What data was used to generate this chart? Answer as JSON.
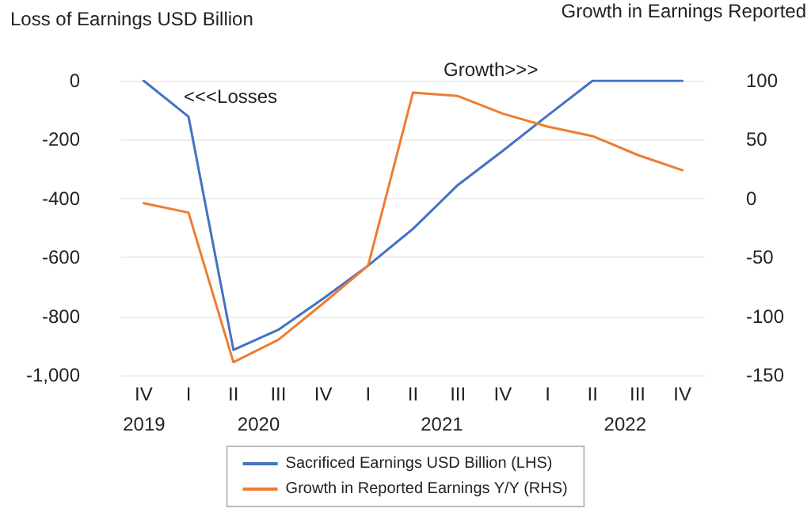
{
  "chart_data": {
    "type": "line",
    "ylabel": "Loss of Earnings USD Billion",
    "y2label": "Growth in Earnings Reported",
    "categories": [
      "IV",
      "I",
      "II",
      "III",
      "IV",
      "I",
      "II",
      "III",
      "IV",
      "I",
      "II",
      "III",
      "IV"
    ],
    "series": [
      {
        "name": "Sacrificed Earnings USD Billion (LHS)",
        "color": "#4472c4",
        "values": [
          0,
          -122,
          -914,
          -846,
          -740,
          -628,
          -503,
          -354,
          -238,
          -118,
          0,
          0,
          0
        ]
      },
      {
        "name": "Growth in Reported Earnings Y/Y (RHS)",
        "color": "#ed7d31",
        "axis": "y2",
        "values": [
          -4,
          -12,
          -139,
          -120,
          -89,
          -57,
          90,
          87,
          72,
          61,
          53,
          37,
          24
        ]
      }
    ],
    "ylim": [
      -1000,
      0
    ],
    "yticks": [
      {
        "value": -1000,
        "label": "-1,000"
      },
      -800,
      -600,
      -400,
      -200,
      0
    ],
    "y2lim": [
      -150,
      100
    ],
    "y2ticks": [
      -150,
      -100,
      -50,
      0,
      50,
      100
    ],
    "annotations": [
      "2019",
      "2020",
      "2021",
      "2022",
      "<<<Losses",
      "Growth>>>"
    ],
    "grid": "y",
    "legend": "bottom",
    "marker": "none",
    "line_style": "solid"
  }
}
